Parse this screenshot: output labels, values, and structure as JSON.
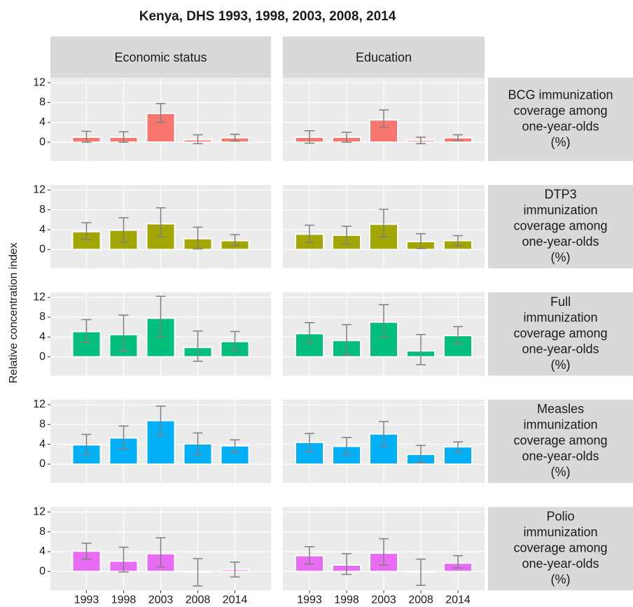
{
  "chart_data": {
    "type": "bar",
    "title": "Kenya, DHS 1993, 1998, 2003, 2008, 2014",
    "ylabel": "Relative concentration index",
    "categories": [
      "1993",
      "1998",
      "2003",
      "2008",
      "2014"
    ],
    "columns": [
      "Economic status",
      "Education"
    ],
    "ylim": [
      -3.8,
      13
    ],
    "yticks": [
      0,
      4,
      8,
      12
    ],
    "grid": true,
    "rows": [
      {
        "label_lines": [
          "BCG immunization",
          "coverage among",
          "one-year-olds",
          "(%)"
        ],
        "color": "#F8766D",
        "panels": [
          {
            "values": [
              1.0,
              1.0,
              5.8,
              0.5,
              0.9
            ],
            "lower": [
              0,
              0,
              4.0,
              -0.3,
              0.2
            ],
            "upper": [
              2.2,
              2.1,
              7.8,
              1.5,
              1.6
            ]
          },
          {
            "values": [
              1.0,
              1.0,
              4.5,
              0.4,
              0.9
            ],
            "lower": [
              -0.2,
              0,
              3.0,
              -0.3,
              0.3
            ],
            "upper": [
              2.3,
              2.0,
              6.5,
              1.0,
              1.5
            ]
          }
        ]
      },
      {
        "label_lines": [
          "DTP3",
          "immunization",
          "coverage among",
          "one-year-olds",
          "(%)"
        ],
        "color": "#A3A500",
        "panels": [
          {
            "values": [
              3.6,
              3.9,
              5.2,
              2.2,
              1.8
            ],
            "lower": [
              2.0,
              1.5,
              2.6,
              0.1,
              0.8
            ],
            "upper": [
              5.4,
              6.4,
              8.4,
              4.5,
              3.0
            ]
          },
          {
            "values": [
              3.1,
              2.9,
              5.1,
              1.6,
              1.8
            ],
            "lower": [
              1.4,
              1.1,
              2.6,
              0.2,
              0.8
            ],
            "upper": [
              4.9,
              4.7,
              8.1,
              3.2,
              2.8
            ]
          }
        ]
      },
      {
        "label_lines": [
          "Full",
          "immunization",
          "coverage among",
          "one-year-olds",
          "(%)"
        ],
        "color": "#00BF7D",
        "panels": [
          {
            "values": [
              5.1,
              4.5,
              7.8,
              1.9,
              3.1
            ],
            "lower": [
              2.9,
              1.2,
              4.1,
              -0.9,
              1.3
            ],
            "upper": [
              7.5,
              8.4,
              12.2,
              5.2,
              5.1
            ]
          },
          {
            "values": [
              4.7,
              3.3,
              7.0,
              1.2,
              4.3
            ],
            "lower": [
              2.8,
              0.4,
              4.0,
              -1.6,
              2.6
            ],
            "upper": [
              6.9,
              6.5,
              10.5,
              4.5,
              6.1
            ]
          }
        ]
      },
      {
        "label_lines": [
          "Measles",
          "immunization",
          "coverage among",
          "one-year-olds",
          "(%)"
        ],
        "color": "#00B0F6",
        "panels": [
          {
            "values": [
              3.9,
              5.3,
              8.8,
              4.1,
              3.7
            ],
            "lower": [
              1.9,
              3.1,
              5.8,
              1.9,
              2.4
            ],
            "upper": [
              6.0,
              7.7,
              11.7,
              6.3,
              4.9
            ]
          },
          {
            "values": [
              4.4,
              3.6,
              6.1,
              2.0,
              3.5
            ],
            "lower": [
              2.5,
              1.9,
              3.6,
              0.3,
              2.4
            ],
            "upper": [
              6.2,
              5.4,
              8.6,
              3.8,
              4.5
            ]
          }
        ]
      },
      {
        "label_lines": [
          "Polio",
          "immunization",
          "coverage among",
          "one-year-olds",
          "(%)"
        ],
        "color": "#E76BF3",
        "panels": [
          {
            "values": [
              4.1,
              2.1,
              3.6,
              -0.1,
              0.4
            ],
            "lower": [
              2.5,
              -0.1,
              0.9,
              -2.9,
              -1.1
            ],
            "upper": [
              5.7,
              4.9,
              6.8,
              2.6,
              1.9
            ]
          },
          {
            "values": [
              3.2,
              1.3,
              3.7,
              -0.1,
              1.7
            ],
            "lower": [
              1.5,
              -0.6,
              1.3,
              -2.8,
              0.7
            ],
            "upper": [
              5.0,
              3.6,
              6.6,
              2.5,
              3.2
            ]
          }
        ]
      }
    ]
  }
}
